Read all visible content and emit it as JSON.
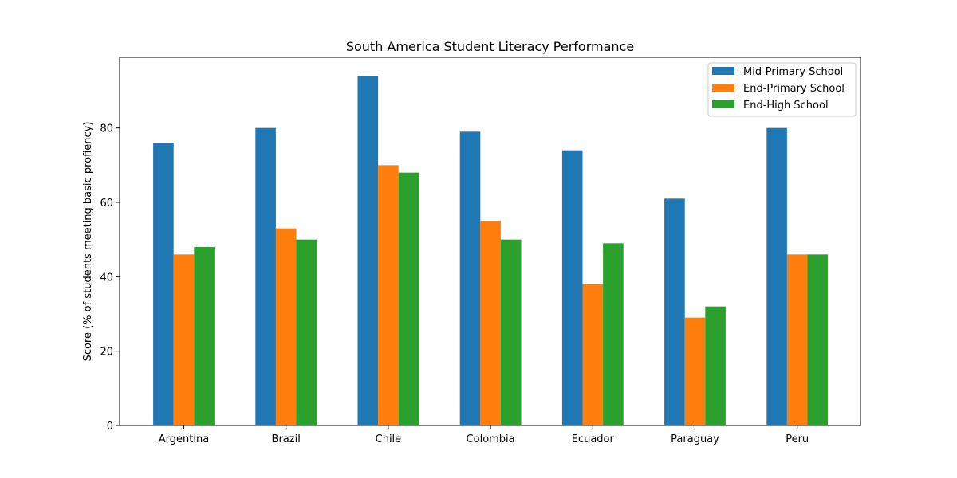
{
  "chart_data": {
    "type": "bar",
    "title": "South America Student Literacy Performance",
    "xlabel": "",
    "ylabel": "Score (% of students meeting basic profiency)",
    "categories": [
      "Argentina",
      "Brazil",
      "Chile",
      "Colombia",
      "Ecuador",
      "Paraguay",
      "Peru"
    ],
    "series": [
      {
        "name": "Mid-Primary School",
        "color": "#1f77b4",
        "values": [
          76,
          80,
          94,
          79,
          74,
          61,
          80
        ]
      },
      {
        "name": "End-Primary School",
        "color": "#ff7f0e",
        "values": [
          46,
          53,
          70,
          55,
          38,
          29,
          46
        ]
      },
      {
        "name": "End-High School",
        "color": "#2ca02c",
        "values": [
          48,
          50,
          68,
          50,
          49,
          32,
          46
        ]
      }
    ],
    "ylim": [
      0,
      99
    ],
    "yticks": [
      0,
      20,
      40,
      60,
      80
    ],
    "grid": false,
    "legend_position": "top-right"
  }
}
